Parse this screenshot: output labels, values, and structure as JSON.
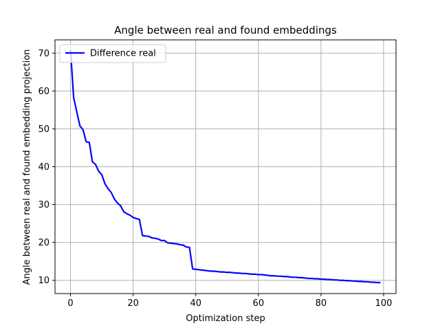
{
  "chart_data": {
    "type": "line",
    "title": "Angle between real and found embeddings",
    "xlabel": "Optimization step",
    "ylabel": "Angle between real and found embedding projection",
    "xlim": [
      -4.95,
      103.95
    ],
    "ylim": [
      6.5,
      73.5
    ],
    "xticks": [
      0,
      20,
      40,
      60,
      80,
      100
    ],
    "yticks": [
      10,
      20,
      30,
      40,
      50,
      60,
      70
    ],
    "grid": true,
    "legend_position": "top-left",
    "series": [
      {
        "name": "Difference real",
        "color": "#0000ff",
        "x": [
          0,
          1,
          2,
          3,
          4,
          5,
          6,
          7,
          8,
          9,
          10,
          11,
          12,
          13,
          14,
          15,
          16,
          17,
          18,
          19,
          20,
          21,
          22,
          23,
          24,
          25,
          26,
          27,
          28,
          29,
          30,
          31,
          32,
          33,
          34,
          35,
          36,
          37,
          38,
          39,
          40,
          41,
          42,
          43,
          44,
          45,
          46,
          47,
          48,
          49,
          50,
          51,
          52,
          53,
          54,
          55,
          56,
          57,
          58,
          59,
          60,
          61,
          62,
          63,
          64,
          65,
          66,
          67,
          68,
          69,
          70,
          71,
          72,
          73,
          74,
          75,
          76,
          77,
          78,
          79,
          80,
          81,
          82,
          83,
          84,
          85,
          86,
          87,
          88,
          89,
          90,
          91,
          92,
          93,
          94,
          95,
          96,
          97,
          98,
          99
        ],
        "y": [
          71.0,
          58.3,
          54.5,
          50.8,
          49.8,
          46.6,
          46.4,
          41.3,
          40.6,
          38.8,
          37.9,
          35.5,
          34.2,
          33.2,
          31.5,
          30.4,
          29.7,
          28.1,
          27.6,
          27.2,
          26.6,
          26.3,
          26.1,
          21.8,
          21.7,
          21.6,
          21.2,
          21.1,
          20.9,
          20.5,
          20.5,
          19.9,
          19.8,
          19.7,
          19.6,
          19.4,
          19.3,
          18.8,
          18.7,
          13.0,
          12.9,
          12.8,
          12.7,
          12.6,
          12.5,
          12.4,
          12.4,
          12.3,
          12.2,
          12.2,
          12.1,
          12.1,
          12.0,
          11.9,
          11.9,
          11.8,
          11.8,
          11.7,
          11.6,
          11.6,
          11.5,
          11.5,
          11.4,
          11.3,
          11.2,
          11.2,
          11.1,
          11.1,
          11.0,
          11.0,
          10.9,
          10.8,
          10.8,
          10.7,
          10.7,
          10.6,
          10.5,
          10.5,
          10.4,
          10.4,
          10.3,
          10.3,
          10.2,
          10.2,
          10.1,
          10.1,
          10.0,
          10.0,
          9.9,
          9.9,
          9.8,
          9.8,
          9.7,
          9.7,
          9.6,
          9.6,
          9.5,
          9.5,
          9.4,
          9.4
        ]
      }
    ]
  }
}
